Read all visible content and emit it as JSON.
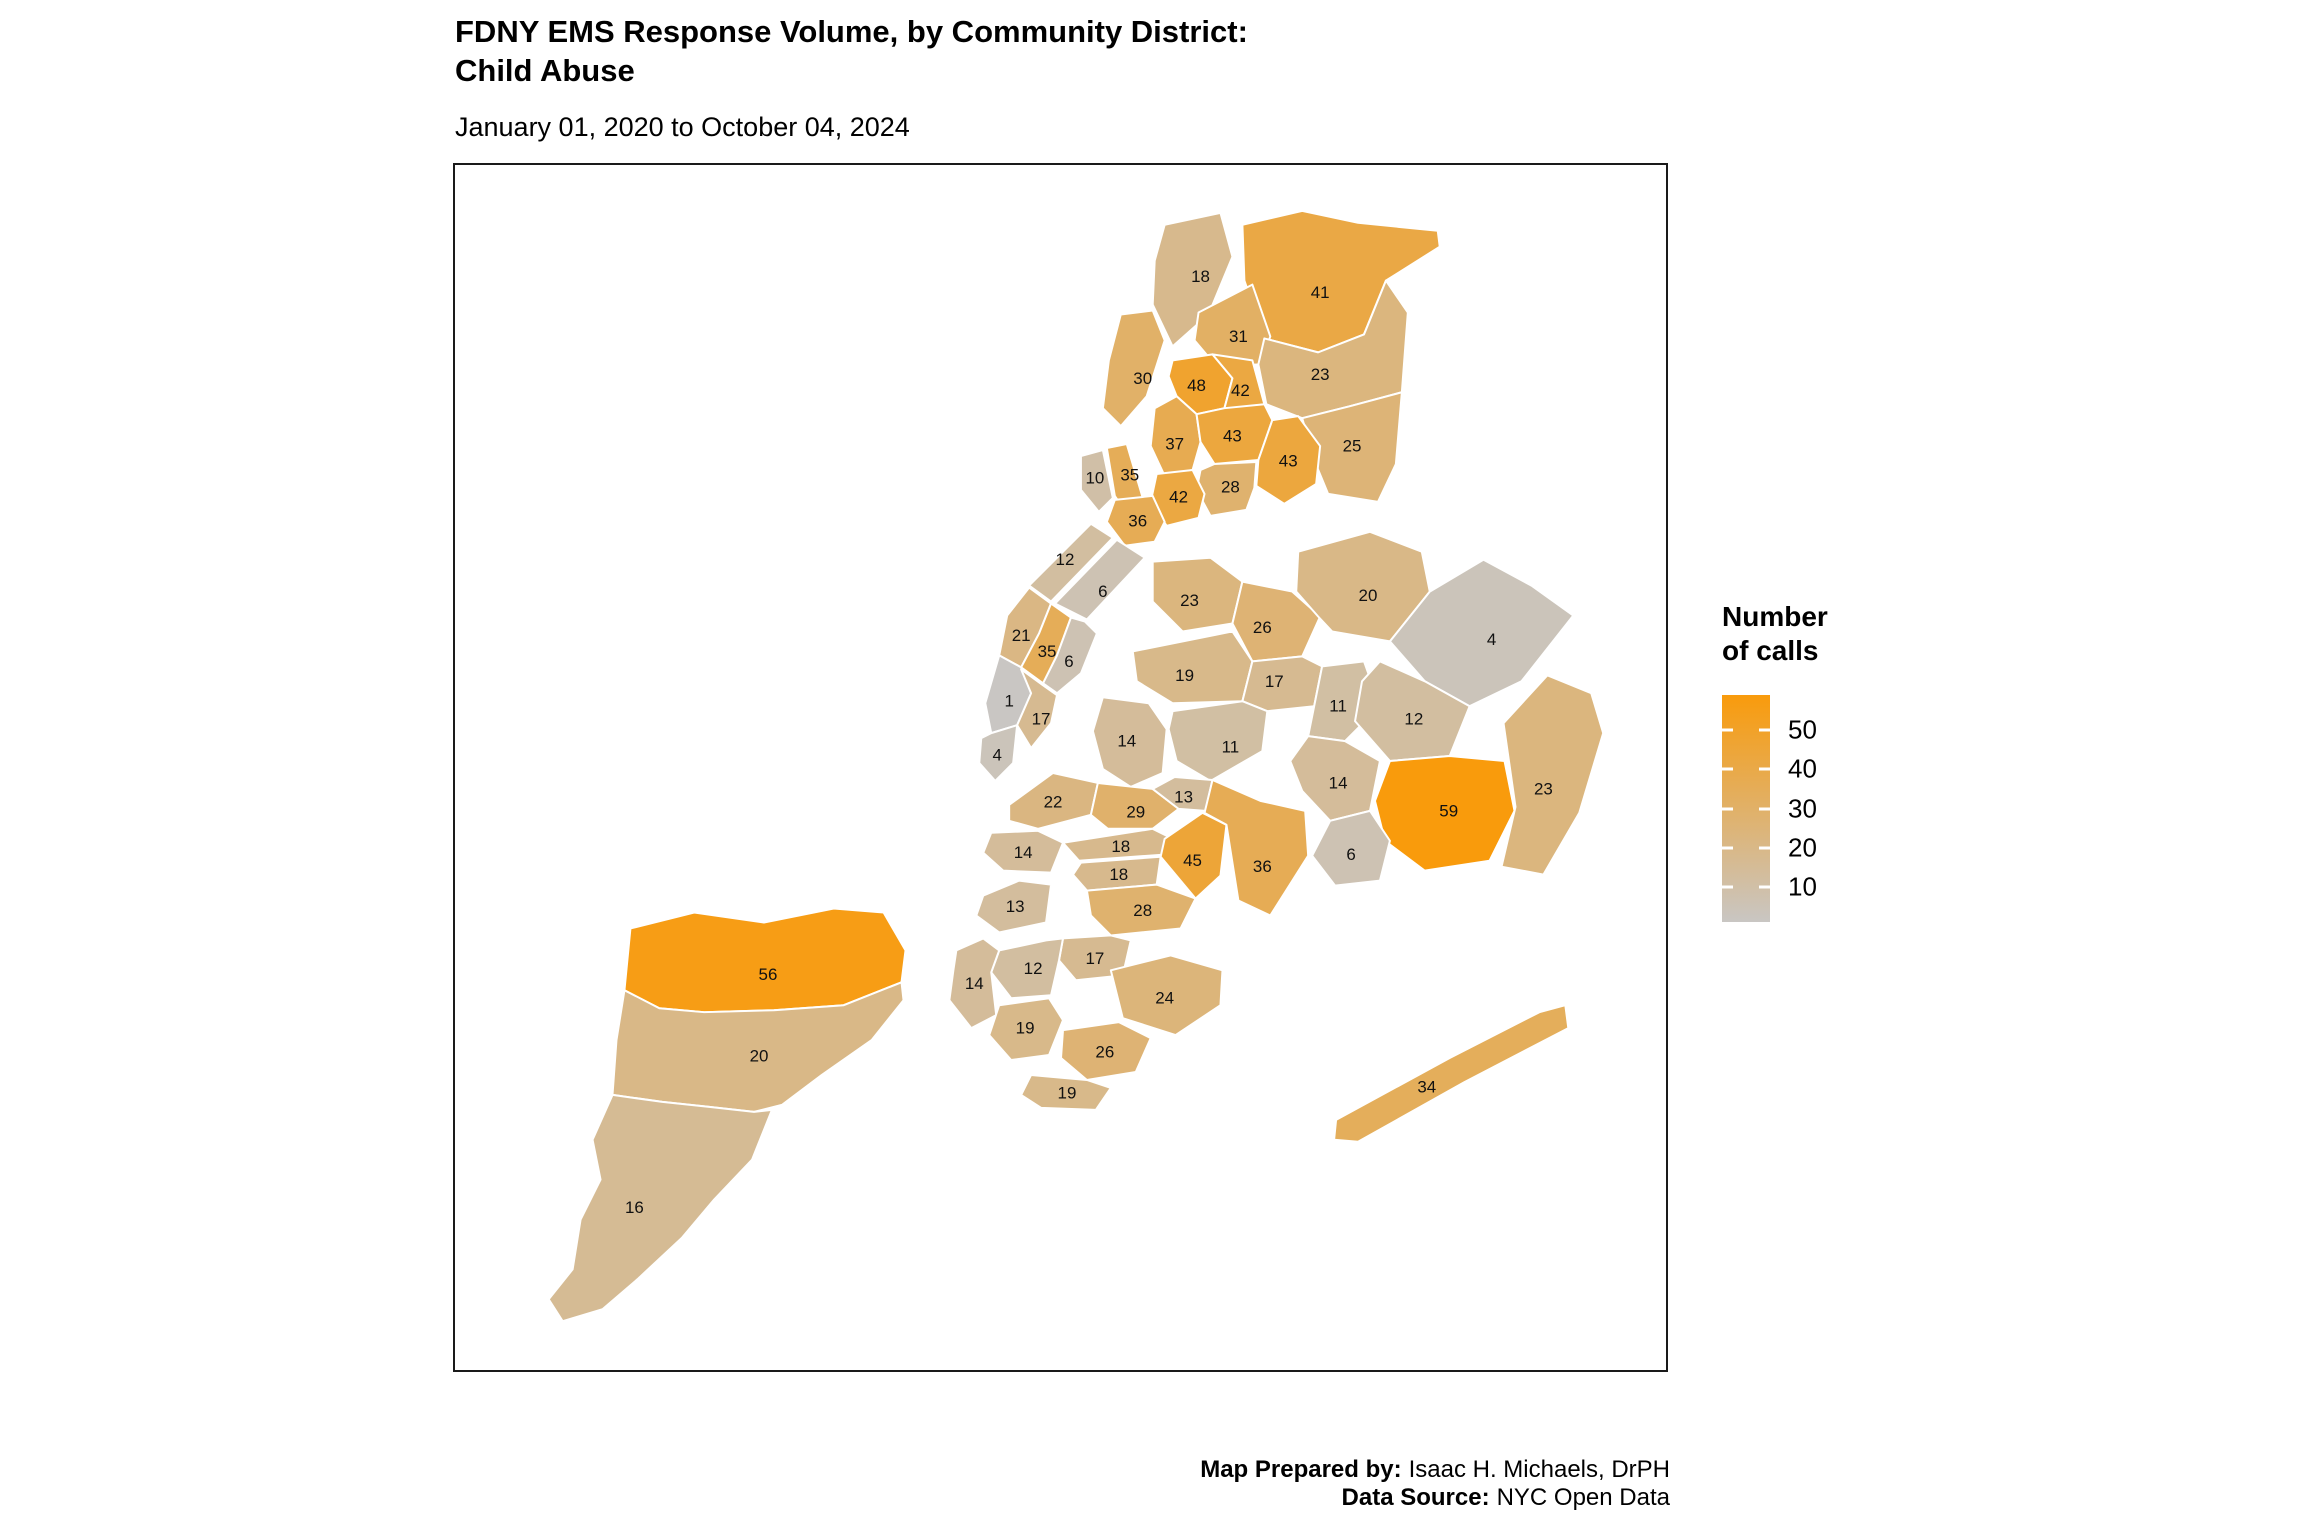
{
  "header": {
    "title_line1": "FDNY EMS Response Volume, by Community District:",
    "title_line2": "Child Abuse",
    "subtitle": "January 01, 2020 to October 04, 2024"
  },
  "legend": {
    "title_line1": "Number",
    "title_line2": "of calls",
    "ticks": [
      50,
      40,
      30,
      20,
      10
    ]
  },
  "footer": {
    "line1_label": "Map Prepared by:",
    "line1_value": "Isaac H. Michaels, DrPH",
    "line2_label": "Data Source:",
    "line2_value": "NYC Open Data"
  },
  "chart_data": {
    "type": "choropleth",
    "title": "FDNY EMS Response Volume, by Community District: Child Abuse",
    "subtitle": "January 01, 2020 to October 04, 2024",
    "legend_title": "Number of calls",
    "legend_ticks": [
      50,
      40,
      30,
      20,
      10
    ],
    "color_scale": {
      "low_value": 1,
      "high_value": 59,
      "low_color": "#C9C6C3",
      "high_color": "#F99B0C"
    },
    "districts": [
      {
        "id": "bx1",
        "calls": 18
      },
      {
        "id": "bx2",
        "calls": 41
      },
      {
        "id": "bx3",
        "calls": 31
      },
      {
        "id": "bx4",
        "calls": 30
      },
      {
        "id": "bx5",
        "calls": 48
      },
      {
        "id": "bx6",
        "calls": 42
      },
      {
        "id": "bx7",
        "calls": 23
      },
      {
        "id": "bx8",
        "calls": 25
      },
      {
        "id": "bx9",
        "calls": 37
      },
      {
        "id": "bx10",
        "calls": 43
      },
      {
        "id": "bx11",
        "calls": 43
      },
      {
        "id": "bx12",
        "calls": 28
      },
      {
        "id": "bx13",
        "calls": 42
      },
      {
        "id": "mn1",
        "calls": 10
      },
      {
        "id": "mn2",
        "calls": 35
      },
      {
        "id": "mn3",
        "calls": 36
      },
      {
        "id": "mn4",
        "calls": 12
      },
      {
        "id": "mn5",
        "calls": 6
      },
      {
        "id": "mn6",
        "calls": 21
      },
      {
        "id": "mn7",
        "calls": 35
      },
      {
        "id": "mn8",
        "calls": 6
      },
      {
        "id": "mn9",
        "calls": 1
      },
      {
        "id": "mn10",
        "calls": 17
      },
      {
        "id": "mn11",
        "calls": 4
      },
      {
        "id": "qn1",
        "calls": 23
      },
      {
        "id": "qn2",
        "calls": 26
      },
      {
        "id": "qn3",
        "calls": 20
      },
      {
        "id": "qn4",
        "calls": 4
      },
      {
        "id": "qn5",
        "calls": 19
      },
      {
        "id": "qn6",
        "calls": 17
      },
      {
        "id": "qn7",
        "calls": 11
      },
      {
        "id": "qn8",
        "calls": 12
      },
      {
        "id": "qn9",
        "calls": 11
      },
      {
        "id": "qn10",
        "calls": 14
      },
      {
        "id": "qn11",
        "calls": 59
      },
      {
        "id": "qn12",
        "calls": 23
      },
      {
        "id": "qn13",
        "calls": 6
      },
      {
        "id": "qn14",
        "calls": 34
      },
      {
        "id": "bk18",
        "calls": 14
      },
      {
        "id": "bk1",
        "calls": 22
      },
      {
        "id": "bk2",
        "calls": 29
      },
      {
        "id": "bk3",
        "calls": 13
      },
      {
        "id": "bk4",
        "calls": 14
      },
      {
        "id": "bk5",
        "calls": 18
      },
      {
        "id": "bk6",
        "calls": 18
      },
      {
        "id": "bk7",
        "calls": 45
      },
      {
        "id": "bk8",
        "calls": 36
      },
      {
        "id": "bk9",
        "calls": 13
      },
      {
        "id": "bk10",
        "calls": 28
      },
      {
        "id": "bk11",
        "calls": 17
      },
      {
        "id": "bk12",
        "calls": 12
      },
      {
        "id": "bk13",
        "calls": 14
      },
      {
        "id": "bk14",
        "calls": 19
      },
      {
        "id": "bk15",
        "calls": 24
      },
      {
        "id": "bk16",
        "calls": 26
      },
      {
        "id": "bk17",
        "calls": 19
      },
      {
        "id": "si1",
        "calls": 56
      },
      {
        "id": "si2",
        "calls": 20
      },
      {
        "id": "si3",
        "calls": 16
      }
    ]
  }
}
